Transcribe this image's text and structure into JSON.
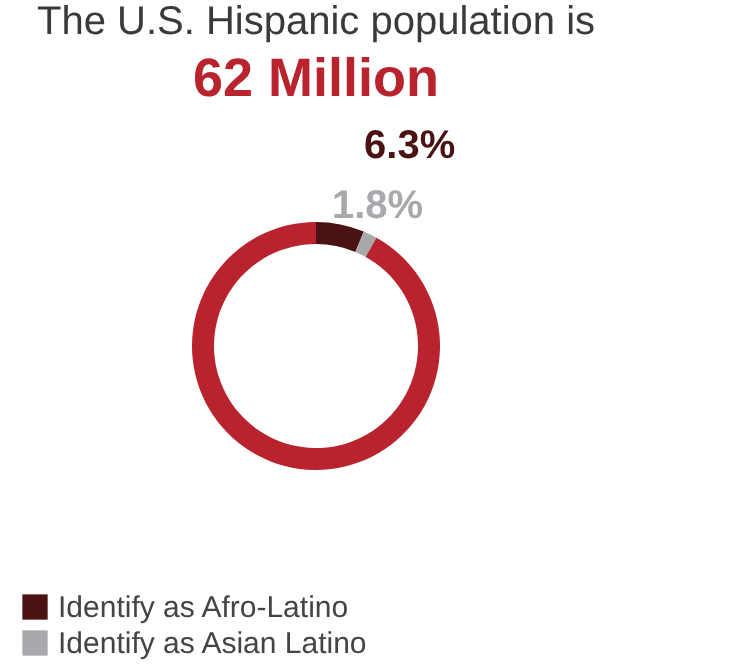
{
  "chart_data": {
    "type": "donut",
    "title": "The U.S. Hispanic population is",
    "subtitle": "62 Million",
    "categories": [
      "Identify as Afro-Latino",
      "Identify as Asian Latino",
      null
    ],
    "values": [
      6.3,
      1.8,
      91.9
    ],
    "colors": [
      "#4b1214",
      "#a7a9ac",
      "#b8232d"
    ],
    "value_labels": [
      "6.3%",
      "1.8%",
      null
    ],
    "legend": "bottom"
  }
}
